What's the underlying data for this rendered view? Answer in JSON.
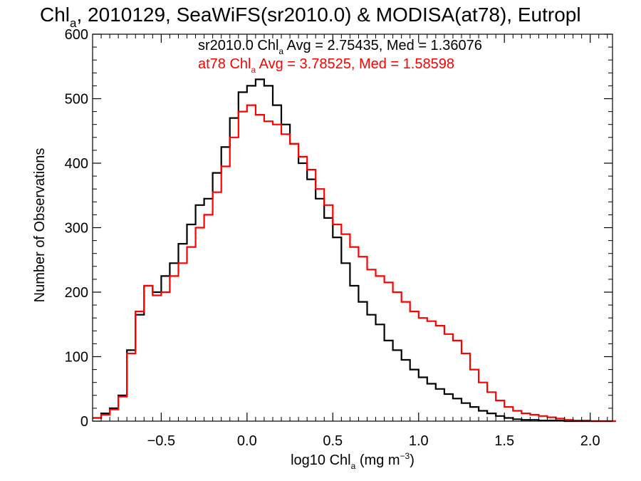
{
  "chart_data": {
    "type": "line",
    "title": {
      "pre": "Chl",
      "sub": "a",
      "post": ", 2010129, SeaWiFS(sr2010.0) & MODISA(at78), Eutropl"
    },
    "xlabel": {
      "pre": "log10 Chl",
      "sub": "a",
      "mid": " (mg m",
      "sup": "−3",
      "post": ")"
    },
    "ylabel": "Number of Observations",
    "xlim": [
      -0.9,
      2.13
    ],
    "ylim": [
      0,
      600
    ],
    "xticks": [
      -0.5,
      0.0,
      0.5,
      1.0,
      1.5,
      2.0
    ],
    "xtick_labels": [
      "−0.5",
      "0.0",
      "0.5",
      "1.0",
      "1.5",
      "2.0"
    ],
    "yticks": [
      0,
      100,
      200,
      300,
      400,
      500,
      600
    ],
    "ytick_labels": [
      "0",
      "100",
      "200",
      "300",
      "400",
      "500",
      "600"
    ],
    "grid": false,
    "legend_placement": "top",
    "series": [
      {
        "key": "sr2010",
        "color": "#000000",
        "stats": {
          "pre": "sr2010.0 Chl",
          "sub": "a",
          "post": " Avg = 2.75435, Med = 1.36076"
        },
        "x": [
          -0.9,
          -0.85,
          -0.8,
          -0.75,
          -0.7,
          -0.65,
          -0.6,
          -0.55,
          -0.5,
          -0.45,
          -0.4,
          -0.35,
          -0.3,
          -0.25,
          -0.2,
          -0.15,
          -0.1,
          -0.05,
          0.0,
          0.05,
          0.1,
          0.15,
          0.2,
          0.25,
          0.3,
          0.35,
          0.4,
          0.45,
          0.5,
          0.55,
          0.6,
          0.65,
          0.7,
          0.75,
          0.8,
          0.85,
          0.9,
          0.95,
          1.0,
          1.05,
          1.1,
          1.15,
          1.2,
          1.25,
          1.3,
          1.35,
          1.4,
          1.45,
          1.5,
          1.55,
          1.6,
          1.65,
          1.7,
          1.75,
          1.8,
          1.85,
          1.9,
          1.95,
          2.0,
          2.05,
          2.1
        ],
        "y": [
          5,
          12,
          20,
          40,
          110,
          165,
          210,
          200,
          225,
          245,
          275,
          305,
          335,
          345,
          385,
          425,
          470,
          510,
          520,
          530,
          520,
          490,
          460,
          430,
          400,
          375,
          345,
          315,
          285,
          245,
          210,
          185,
          165,
          150,
          125,
          110,
          95,
          80,
          68,
          58,
          50,
          42,
          35,
          28,
          22,
          16,
          12,
          8,
          5,
          3,
          2,
          2,
          1,
          1,
          1,
          0,
          0,
          0,
          0,
          0,
          0
        ]
      },
      {
        "key": "at78",
        "color": "#ff0000",
        "stats": {
          "pre": "at78 Chl",
          "sub": "a",
          "post": " Avg = 3.78525, Med = 1.58598"
        },
        "x": [
          -0.9,
          -0.85,
          -0.8,
          -0.75,
          -0.7,
          -0.65,
          -0.6,
          -0.55,
          -0.5,
          -0.45,
          -0.4,
          -0.35,
          -0.3,
          -0.25,
          -0.2,
          -0.15,
          -0.1,
          -0.05,
          0.0,
          0.05,
          0.1,
          0.15,
          0.2,
          0.25,
          0.3,
          0.35,
          0.4,
          0.45,
          0.5,
          0.55,
          0.6,
          0.65,
          0.7,
          0.75,
          0.8,
          0.85,
          0.9,
          0.95,
          1.0,
          1.05,
          1.1,
          1.15,
          1.2,
          1.25,
          1.3,
          1.35,
          1.4,
          1.45,
          1.5,
          1.55,
          1.6,
          1.65,
          1.7,
          1.75,
          1.8,
          1.85,
          1.9,
          1.95,
          2.0,
          2.05,
          2.1
        ],
        "y": [
          5,
          10,
          18,
          38,
          105,
          170,
          210,
          195,
          200,
          225,
          245,
          270,
          300,
          320,
          355,
          395,
          440,
          480,
          490,
          475,
          465,
          460,
          445,
          430,
          410,
          390,
          360,
          335,
          305,
          290,
          270,
          255,
          235,
          225,
          215,
          200,
          185,
          170,
          160,
          155,
          148,
          135,
          125,
          105,
          80,
          60,
          45,
          32,
          22,
          16,
          12,
          10,
          8,
          6,
          4,
          2,
          1,
          1,
          0,
          0,
          0
        ]
      }
    ]
  }
}
